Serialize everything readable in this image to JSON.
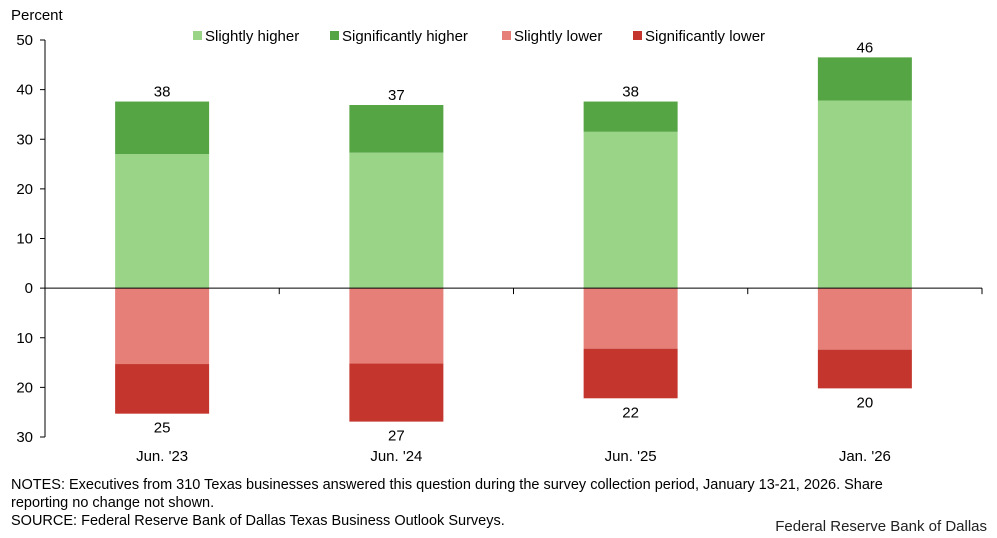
{
  "chart_data": {
    "type": "bar",
    "stacked": true,
    "ylabel": "Percent",
    "ylim": [
      -30,
      50
    ],
    "yticks": [
      50,
      40,
      30,
      20,
      10,
      0,
      -10,
      -20,
      -30
    ],
    "ytick_labels": [
      "50",
      "40",
      "30",
      "20",
      "10",
      "0",
      "10",
      "20",
      "30"
    ],
    "legend_position": "top",
    "categories": [
      "Jun. '23",
      "Jun. '24",
      "Jun. '25",
      "Jan. '26"
    ],
    "series": [
      {
        "name": "Slightly higher",
        "color": "#9ad486",
        "values": [
          27,
          27.3,
          31.5,
          37.8
        ]
      },
      {
        "name": "Significantly higher",
        "color": "#56a545",
        "values": [
          10.6,
          9.6,
          6.1,
          8.7
        ]
      },
      {
        "name": "Slightly lower",
        "color": "#e57f77",
        "values": [
          -15.3,
          -15.2,
          -12.2,
          -12.4
        ]
      },
      {
        "name": "Significantly lower",
        "color": "#c4362d",
        "values": [
          -10,
          -11.7,
          -10,
          -7.8
        ]
      }
    ],
    "top_labels": [
      "38",
      "37",
      "38",
      "46"
    ],
    "bottom_labels": [
      "25",
      "27",
      "22",
      "20"
    ]
  },
  "notes": {
    "line1": "NOTES: Executives from 310 Texas businesses answered this question during the survey collection period, January 13-21, 2026. Share",
    "line2": "reporting no change not shown.",
    "source": "SOURCE: Federal Reserve Bank of Dallas Texas Business Outlook Surveys."
  },
  "credit": "Federal Reserve Bank of Dallas"
}
